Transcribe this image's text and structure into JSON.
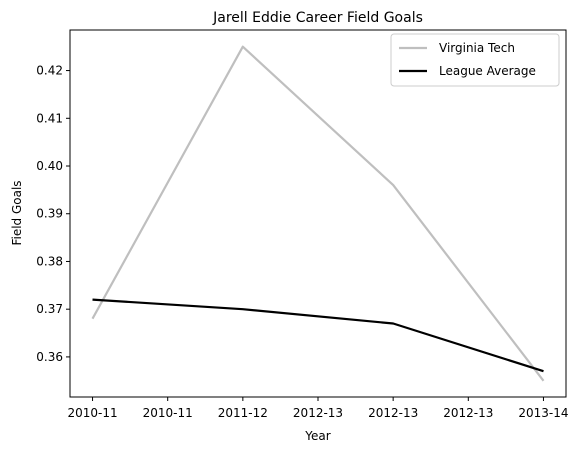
{
  "chart_data": {
    "type": "line",
    "title": "Jarell Eddie Career Field Goals",
    "xlabel": "Year",
    "ylabel": "Field Goals",
    "x": [
      0,
      1,
      2,
      3
    ],
    "x_tick_positions": [
      0,
      0.5,
      1,
      1.5,
      2,
      2.5,
      3
    ],
    "x_tick_labels": [
      "2010-11",
      "2010-11",
      "2011-12",
      "2012-13",
      "2012-13",
      "2012-13",
      "2013-14"
    ],
    "ylim": [
      0.3516,
      0.4285
    ],
    "xlim": [
      -0.15,
      3.15
    ],
    "y_ticks": [
      0.36,
      0.37,
      0.38,
      0.39,
      0.4,
      0.41,
      0.42
    ],
    "y_tick_labels": [
      "0.36",
      "0.37",
      "0.38",
      "0.39",
      "0.40",
      "0.41",
      "0.42"
    ],
    "legend_position": "top-right",
    "grid": false,
    "series": [
      {
        "name": "Virginia Tech",
        "color": "#bfbfbf",
        "values": [
          0.368,
          0.425,
          0.396,
          0.355
        ]
      },
      {
        "name": "League Average",
        "color": "#000000",
        "values": [
          0.372,
          0.37,
          0.367,
          0.357
        ]
      }
    ]
  }
}
